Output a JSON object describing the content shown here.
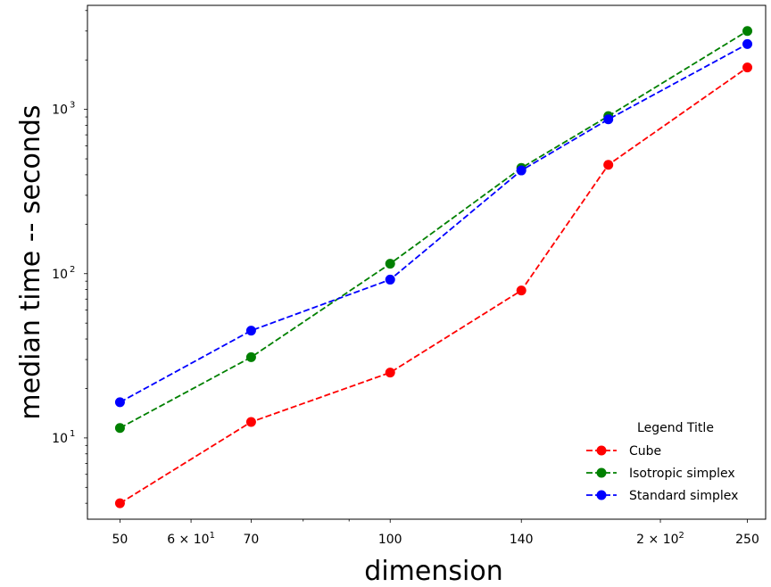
{
  "chart_data": {
    "type": "line",
    "xlabel": "dimension",
    "ylabel": "median time -- seconds",
    "xscale": "log",
    "yscale": "log",
    "xlim": [
      46,
      262
    ],
    "ylim": [
      3.2,
      4300
    ],
    "grid": false,
    "legend": {
      "title": "Legend Title",
      "placement": "bottom-right",
      "frame": false
    },
    "x_ticks": [
      {
        "value": 50,
        "label": "50",
        "mantissa": "",
        "exponent": ""
      },
      {
        "value": 60,
        "label": "",
        "mantissa": "6 × 10",
        "exponent": "1"
      },
      {
        "value": 70,
        "label": "70",
        "mantissa": "",
        "exponent": ""
      },
      {
        "value": 100,
        "label": "100",
        "mantissa": "",
        "exponent": ""
      },
      {
        "value": 140,
        "label": "140",
        "mantissa": "",
        "exponent": ""
      },
      {
        "value": 200,
        "label": "",
        "mantissa": "2 × 10",
        "exponent": "2"
      },
      {
        "value": 250,
        "label": "250",
        "mantissa": "",
        "exponent": ""
      }
    ],
    "x_minor_ticks": [
      80,
      90
    ],
    "y_ticks": [
      {
        "value": 10,
        "mantissa": "10",
        "exponent": "1"
      },
      {
        "value": 100,
        "mantissa": "10",
        "exponent": "2"
      },
      {
        "value": 1000,
        "mantissa": "10",
        "exponent": "3"
      }
    ],
    "y_minor_ticks": [
      4,
      5,
      6,
      7,
      8,
      9,
      20,
      30,
      40,
      50,
      60,
      70,
      80,
      90,
      200,
      300,
      400,
      500,
      600,
      700,
      800,
      900,
      2000,
      3000,
      4000
    ],
    "x": [
      50,
      70,
      100,
      140,
      175,
      250
    ],
    "series": [
      {
        "name": "Cube",
        "color": "#ff0000",
        "values": [
          4.0,
          12.5,
          25,
          79,
          460,
          1800
        ]
      },
      {
        "name": "Isotropic simplex",
        "color": "#008000",
        "values": [
          11.5,
          31,
          115,
          440,
          910,
          3000
        ]
      },
      {
        "name": "Standard simplex",
        "color": "#0000ff",
        "values": [
          16.5,
          45,
          92,
          425,
          870,
          2500
        ]
      }
    ]
  }
}
